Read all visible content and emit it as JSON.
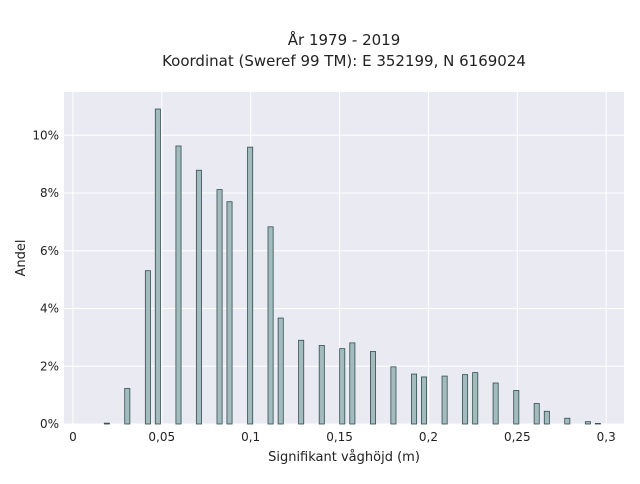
{
  "chart_data": {
    "type": "bar",
    "title_line1": "År 1979 - 2019",
    "title_line2": "Koordinat (Sweref 99 TM): E 352199, N 6169024",
    "xlabel": "Signifikant våghöjd (m)",
    "ylabel": "Andel",
    "xlim": [
      -0.005,
      0.31
    ],
    "ylim": [
      0,
      0.115
    ],
    "grid": true,
    "x_ticks": [
      {
        "value": 0,
        "label": "0"
      },
      {
        "value": 0.05,
        "label": "0,05"
      },
      {
        "value": 0.1,
        "label": "0,1"
      },
      {
        "value": 0.15,
        "label": "0,15"
      },
      {
        "value": 0.2,
        "label": "0,2"
      },
      {
        "value": 0.25,
        "label": "0,25"
      },
      {
        "value": 0.3,
        "label": "0,3"
      }
    ],
    "y_ticks": [
      {
        "value": 0,
        "label": "0%"
      },
      {
        "value": 0.02,
        "label": "2%"
      },
      {
        "value": 0.04,
        "label": "4%"
      },
      {
        "value": 0.06,
        "label": "6%"
      },
      {
        "value": 0.08,
        "label": "8%"
      },
      {
        "value": 0.1,
        "label": "10%"
      }
    ],
    "bin_width": 0.0029,
    "bars": [
      {
        "x": 0.0191,
        "y": 0.0003
      },
      {
        "x": 0.0306,
        "y": 0.0123
      },
      {
        "x": 0.0422,
        "y": 0.0531
      },
      {
        "x": 0.0478,
        "y": 0.1091
      },
      {
        "x": 0.0594,
        "y": 0.0963
      },
      {
        "x": 0.0709,
        "y": 0.0879
      },
      {
        "x": 0.0825,
        "y": 0.0812
      },
      {
        "x": 0.0881,
        "y": 0.077
      },
      {
        "x": 0.0997,
        "y": 0.0959
      },
      {
        "x": 0.1112,
        "y": 0.0683
      },
      {
        "x": 0.1169,
        "y": 0.0367
      },
      {
        "x": 0.1284,
        "y": 0.029
      },
      {
        "x": 0.14,
        "y": 0.0272
      },
      {
        "x": 0.1515,
        "y": 0.0261
      },
      {
        "x": 0.1572,
        "y": 0.0281
      },
      {
        "x": 0.1688,
        "y": 0.0251
      },
      {
        "x": 0.1803,
        "y": 0.0198
      },
      {
        "x": 0.1919,
        "y": 0.0173
      },
      {
        "x": 0.1975,
        "y": 0.0163
      },
      {
        "x": 0.2091,
        "y": 0.0166
      },
      {
        "x": 0.2206,
        "y": 0.0171
      },
      {
        "x": 0.2263,
        "y": 0.0178
      },
      {
        "x": 0.2378,
        "y": 0.0142
      },
      {
        "x": 0.2494,
        "y": 0.0116
      },
      {
        "x": 0.2609,
        "y": 0.0071
      },
      {
        "x": 0.2666,
        "y": 0.0044
      },
      {
        "x": 0.2781,
        "y": 0.002
      },
      {
        "x": 0.2897,
        "y": 0.0008
      },
      {
        "x": 0.2953,
        "y": 0.0002
      }
    ],
    "colors": {
      "bar_fill": "#a3bbbc",
      "bar_stroke": "#2f4f4f",
      "plot_bg": "#eaeaf2",
      "grid": "#ffffff"
    }
  }
}
